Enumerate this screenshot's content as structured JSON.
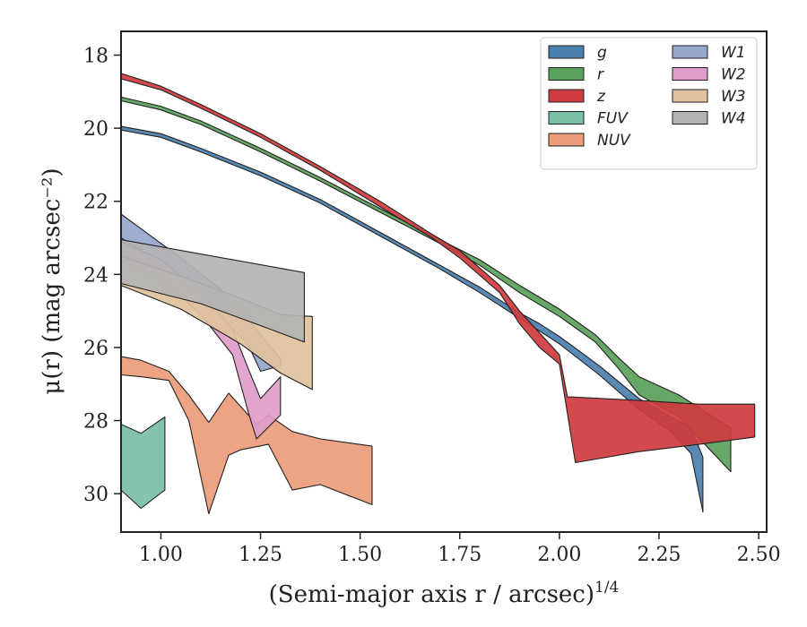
{
  "chart_data": {
    "type": "area",
    "xlabel": "(Semi-major axis r / arcsec)",
    "xlabel_sup": "1/4",
    "ylabel": "μ(r) (mag arcsec⁻²)",
    "xlim": [
      0.9,
      2.52
    ],
    "ylim": [
      31.05,
      17.35
    ],
    "y_inverted": true,
    "xticks": [
      1.0,
      1.25,
      1.5,
      1.75,
      2.0,
      2.25,
      2.5
    ],
    "xtick_labels": [
      "1.00",
      "1.25",
      "1.50",
      "1.75",
      "2.00",
      "2.25",
      "2.50"
    ],
    "yticks": [
      18,
      20,
      22,
      24,
      26,
      28,
      30
    ],
    "ytick_labels": [
      "18",
      "20",
      "22",
      "24",
      "26",
      "28",
      "30"
    ],
    "grid": false,
    "legend": {
      "placement": "top-right",
      "columns": 2
    },
    "series": [
      {
        "name": "g",
        "color": "#4c7fad",
        "upper": [
          [
            0.9,
            19.95
          ],
          [
            1.0,
            20.15
          ],
          [
            1.1,
            20.55
          ],
          [
            1.25,
            21.2
          ],
          [
            1.4,
            21.95
          ],
          [
            1.55,
            22.85
          ],
          [
            1.7,
            23.75
          ],
          [
            1.8,
            24.35
          ],
          [
            1.9,
            25.05
          ],
          [
            1.95,
            25.35
          ],
          [
            2.0,
            25.7
          ],
          [
            2.1,
            26.5
          ],
          [
            2.2,
            27.4
          ],
          [
            2.28,
            27.9
          ],
          [
            2.33,
            28.2
          ],
          [
            2.36,
            29.0
          ]
        ],
        "lower": [
          [
            0.9,
            20.05
          ],
          [
            1.0,
            20.25
          ],
          [
            1.1,
            20.65
          ],
          [
            1.25,
            21.3
          ],
          [
            1.4,
            22.05
          ],
          [
            1.55,
            22.95
          ],
          [
            1.7,
            23.85
          ],
          [
            1.8,
            24.5
          ],
          [
            1.9,
            25.2
          ],
          [
            1.95,
            25.55
          ],
          [
            2.0,
            25.9
          ],
          [
            2.1,
            26.75
          ],
          [
            2.2,
            27.7
          ],
          [
            2.28,
            28.3
          ],
          [
            2.33,
            28.9
          ],
          [
            2.36,
            30.5
          ]
        ]
      },
      {
        "name": "r",
        "color": "#5aa05a",
        "upper": [
          [
            0.9,
            19.15
          ],
          [
            1.0,
            19.4
          ],
          [
            1.1,
            19.8
          ],
          [
            1.25,
            20.55
          ],
          [
            1.4,
            21.35
          ],
          [
            1.55,
            22.2
          ],
          [
            1.7,
            23.05
          ],
          [
            1.8,
            23.6
          ],
          [
            1.9,
            24.3
          ],
          [
            2.0,
            24.95
          ],
          [
            2.09,
            25.65
          ],
          [
            2.15,
            26.3
          ],
          [
            2.2,
            26.8
          ],
          [
            2.3,
            27.3
          ],
          [
            2.43,
            28.2
          ]
        ],
        "lower": [
          [
            0.9,
            19.25
          ],
          [
            1.0,
            19.5
          ],
          [
            1.1,
            19.9
          ],
          [
            1.25,
            20.65
          ],
          [
            1.4,
            21.45
          ],
          [
            1.55,
            22.3
          ],
          [
            1.7,
            23.15
          ],
          [
            1.8,
            23.75
          ],
          [
            1.9,
            24.5
          ],
          [
            2.0,
            25.15
          ],
          [
            2.09,
            25.85
          ],
          [
            2.15,
            26.6
          ],
          [
            2.2,
            27.3
          ],
          [
            2.3,
            27.9
          ],
          [
            2.43,
            29.4
          ]
        ]
      },
      {
        "name": "z",
        "color": "#cf3b3e",
        "upper": [
          [
            0.9,
            18.5
          ],
          [
            1.0,
            18.85
          ],
          [
            1.1,
            19.35
          ],
          [
            1.25,
            20.15
          ],
          [
            1.4,
            21.05
          ],
          [
            1.55,
            22.0
          ],
          [
            1.68,
            22.9
          ],
          [
            1.75,
            23.35
          ],
          [
            1.85,
            24.3
          ],
          [
            1.9,
            25.0
          ],
          [
            1.95,
            25.6
          ],
          [
            2.0,
            26.2
          ],
          [
            2.02,
            27.35
          ],
          [
            2.2,
            27.45
          ],
          [
            2.35,
            27.55
          ],
          [
            2.49,
            27.55
          ]
        ],
        "lower": [
          [
            0.9,
            18.65
          ],
          [
            1.0,
            18.95
          ],
          [
            1.1,
            19.45
          ],
          [
            1.25,
            20.25
          ],
          [
            1.4,
            21.15
          ],
          [
            1.55,
            22.15
          ],
          [
            1.68,
            23.0
          ],
          [
            1.75,
            23.55
          ],
          [
            1.85,
            24.5
          ],
          [
            1.9,
            25.35
          ],
          [
            1.95,
            26.0
          ],
          [
            2.0,
            26.45
          ],
          [
            2.04,
            29.15
          ],
          [
            2.2,
            28.85
          ],
          [
            2.35,
            28.65
          ],
          [
            2.49,
            28.45
          ]
        ]
      },
      {
        "name": "FUV",
        "color": "#7bbfa5",
        "upper": [
          [
            0.9,
            28.1
          ],
          [
            0.95,
            28.35
          ],
          [
            1.01,
            27.9
          ]
        ],
        "lower": [
          [
            0.9,
            29.9
          ],
          [
            0.95,
            30.4
          ],
          [
            1.01,
            29.9
          ]
        ]
      },
      {
        "name": "NUV",
        "color": "#eb9c7b",
        "upper": [
          [
            0.9,
            26.25
          ],
          [
            0.95,
            26.35
          ],
          [
            1.02,
            26.65
          ],
          [
            1.07,
            27.3
          ],
          [
            1.12,
            28.05
          ],
          [
            1.17,
            27.25
          ],
          [
            1.24,
            28.1
          ],
          [
            1.27,
            27.85
          ],
          [
            1.33,
            28.3
          ],
          [
            1.4,
            28.5
          ],
          [
            1.53,
            28.7
          ]
        ],
        "lower": [
          [
            0.9,
            26.75
          ],
          [
            0.95,
            26.8
          ],
          [
            1.02,
            26.9
          ],
          [
            1.07,
            28.0
          ],
          [
            1.12,
            30.55
          ],
          [
            1.17,
            28.95
          ],
          [
            1.2,
            28.8
          ],
          [
            1.27,
            28.65
          ],
          [
            1.33,
            29.9
          ],
          [
            1.4,
            29.75
          ],
          [
            1.53,
            30.3
          ]
        ]
      },
      {
        "name": "W1",
        "color": "#97a7cc",
        "upper": [
          [
            0.9,
            22.35
          ],
          [
            0.95,
            22.75
          ],
          [
            1.05,
            23.55
          ],
          [
            1.15,
            24.4
          ],
          [
            1.22,
            25.25
          ],
          [
            1.28,
            26.05
          ],
          [
            1.3,
            26.3
          ]
        ],
        "lower": [
          [
            0.9,
            23.0
          ],
          [
            0.95,
            23.35
          ],
          [
            1.05,
            24.2
          ],
          [
            1.15,
            25.15
          ],
          [
            1.22,
            25.95
          ],
          [
            1.25,
            26.65
          ],
          [
            1.3,
            26.5
          ]
        ]
      },
      {
        "name": "W2",
        "color": "#df9dc9",
        "upper": [
          [
            0.9,
            23.1
          ],
          [
            1.0,
            23.6
          ],
          [
            1.1,
            24.5
          ],
          [
            1.18,
            25.5
          ],
          [
            1.22,
            26.6
          ],
          [
            1.25,
            27.4
          ],
          [
            1.3,
            26.8
          ]
        ],
        "lower": [
          [
            0.9,
            23.6
          ],
          [
            1.0,
            24.1
          ],
          [
            1.1,
            25.1
          ],
          [
            1.18,
            26.2
          ],
          [
            1.22,
            27.8
          ],
          [
            1.24,
            28.5
          ],
          [
            1.3,
            27.85
          ]
        ]
      },
      {
        "name": "W3",
        "color": "#dfc29d",
        "upper": [
          [
            0.9,
            23.5
          ],
          [
            1.05,
            24.05
          ],
          [
            1.2,
            24.65
          ],
          [
            1.3,
            25.1
          ],
          [
            1.38,
            25.15
          ]
        ],
        "lower": [
          [
            0.9,
            24.3
          ],
          [
            1.05,
            24.95
          ],
          [
            1.2,
            25.9
          ],
          [
            1.3,
            26.7
          ],
          [
            1.38,
            27.15
          ]
        ]
      },
      {
        "name": "W4",
        "color": "#b3b3b3",
        "upper": [
          [
            0.9,
            23.05
          ],
          [
            1.36,
            23.95
          ]
        ],
        "lower": [
          [
            0.9,
            24.25
          ],
          [
            1.1,
            24.8
          ],
          [
            1.25,
            25.4
          ],
          [
            1.36,
            25.85
          ]
        ]
      }
    ]
  }
}
